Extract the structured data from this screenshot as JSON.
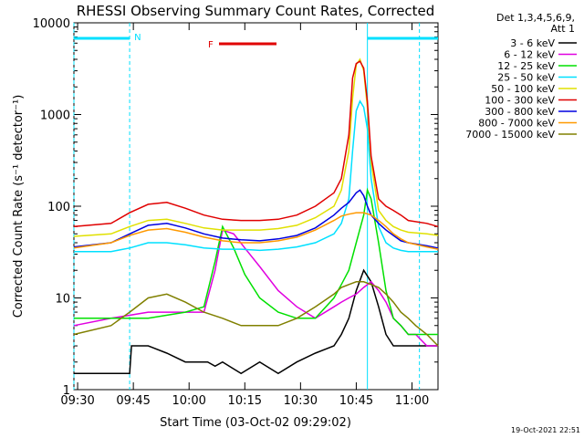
{
  "chart_data": {
    "type": "line",
    "title": "RHESSI Observing Summary Count Rates, Corrected",
    "xlabel": "Start Time (03-Oct-02 09:29:02)",
    "ylabel": "Corrected Count Rate (s⁻¹ detector⁻¹)",
    "yscale": "log",
    "ylim": [
      1,
      10000
    ],
    "xlim_minutes": [
      0,
      98
    ],
    "x_ticks": [
      "09:30",
      "09:45",
      "10:00",
      "10:15",
      "10:30",
      "10:45",
      "11:00"
    ],
    "y_ticks": [
      "1",
      "10",
      "100",
      "1000",
      "10000"
    ],
    "legend_header": [
      "Det 1,3,4,5,6,9,",
      "Att 1"
    ],
    "footer_date": "19-Oct-2021 22:51",
    "grid": false,
    "legend_position": "right",
    "annotations": {
      "night_label": "N",
      "flare_label": "F",
      "flare_color": "#e00000",
      "night_color": "#00e0ff"
    },
    "series": [
      {
        "name": "3 - 6 keV",
        "color": "#000000",
        "x": [
          0,
          15,
          15.5,
          16,
          20,
          25,
          30,
          33,
          36,
          38,
          40,
          45,
          50,
          55,
          60,
          65,
          70,
          72,
          74,
          76,
          78,
          80,
          82,
          84,
          86,
          88,
          90,
          92,
          95,
          98
        ],
        "y": [
          1.5,
          1.5,
          3,
          3,
          3,
          2.5,
          2,
          2,
          2,
          1.8,
          2,
          1.5,
          2,
          1.5,
          2,
          2.5,
          3,
          4,
          6,
          12,
          20,
          15,
          8,
          4,
          3,
          3,
          3,
          3,
          3,
          3
        ]
      },
      {
        "name": "6 - 12 keV",
        "color": "#e000e0",
        "x": [
          0,
          10,
          20,
          30,
          35,
          38,
          40,
          43,
          46,
          50,
          55,
          60,
          65,
          70,
          72,
          74,
          76,
          78,
          80,
          82,
          84,
          86,
          88,
          90,
          92,
          95,
          98
        ],
        "y": [
          5,
          6,
          7,
          7,
          7,
          20,
          55,
          50,
          35,
          22,
          12,
          8,
          6,
          8,
          9,
          10,
          11,
          13,
          15,
          12,
          9,
          6,
          5,
          4,
          4,
          3,
          3
        ]
      },
      {
        "name": "12 - 25 keV",
        "color": "#00e000",
        "x": [
          0,
          10,
          20,
          30,
          35,
          38,
          40,
          43,
          46,
          50,
          55,
          60,
          65,
          70,
          72,
          74,
          76,
          78,
          79,
          80,
          82,
          84,
          86,
          88,
          90,
          92,
          95,
          98
        ],
        "y": [
          6,
          6,
          6,
          7,
          8,
          25,
          60,
          35,
          18,
          10,
          7,
          6,
          6,
          10,
          14,
          20,
          40,
          80,
          150,
          120,
          40,
          12,
          6,
          5,
          4,
          4,
          4,
          4
        ]
      },
      {
        "name": "25 - 50 keV",
        "color": "#00e0ff",
        "x": [
          0,
          10,
          15,
          20,
          25,
          30,
          35,
          40,
          45,
          50,
          55,
          60,
          65,
          70,
          72,
          74,
          75,
          76,
          77,
          78,
          79,
          80,
          82,
          84,
          86,
          88,
          90,
          95,
          98
        ],
        "y": [
          32,
          32,
          35,
          40,
          40,
          38,
          35,
          34,
          34,
          33,
          34,
          36,
          40,
          50,
          65,
          120,
          400,
          1100,
          1400,
          1200,
          700,
          200,
          60,
          40,
          35,
          33,
          32,
          32,
          32
        ]
      },
      {
        "name": "50 - 100 keV",
        "color": "#e0e000",
        "x": [
          0,
          10,
          15,
          20,
          25,
          30,
          35,
          40,
          45,
          50,
          55,
          60,
          65,
          70,
          72,
          74,
          75,
          76,
          77,
          78,
          79,
          80,
          82,
          84,
          86,
          88,
          90,
          95,
          98
        ],
        "y": [
          47,
          50,
          60,
          70,
          72,
          65,
          58,
          55,
          55,
          55,
          57,
          62,
          75,
          100,
          150,
          400,
          1500,
          3500,
          4000,
          3000,
          1200,
          300,
          90,
          70,
          60,
          55,
          52,
          50,
          48
        ]
      },
      {
        "name": "100 - 300 keV",
        "color": "#e00000",
        "x": [
          0,
          10,
          15,
          20,
          25,
          30,
          35,
          40,
          45,
          50,
          55,
          60,
          65,
          70,
          72,
          74,
          75,
          76,
          77,
          78,
          79,
          80,
          82,
          84,
          86,
          88,
          90,
          95,
          98
        ],
        "y": [
          60,
          65,
          85,
          105,
          110,
          95,
          80,
          72,
          70,
          70,
          72,
          80,
          100,
          140,
          200,
          600,
          2500,
          3600,
          3800,
          3200,
          1400,
          350,
          120,
          100,
          90,
          80,
          70,
          65,
          60
        ]
      },
      {
        "name": "300 - 800 keV",
        "color": "#0000e0",
        "x": [
          0,
          10,
          15,
          20,
          25,
          30,
          35,
          40,
          45,
          50,
          55,
          60,
          65,
          70,
          72,
          74,
          76,
          77,
          78,
          79,
          80,
          82,
          84,
          86,
          88,
          90,
          95,
          98
        ],
        "y": [
          36,
          40,
          50,
          62,
          65,
          58,
          50,
          45,
          43,
          42,
          44,
          48,
          58,
          80,
          95,
          110,
          140,
          150,
          130,
          100,
          80,
          65,
          55,
          48,
          42,
          40,
          37,
          35
        ]
      },
      {
        "name": "800 - 7000 keV",
        "color": "#ff9900",
        "x": [
          0,
          10,
          15,
          20,
          25,
          30,
          35,
          40,
          45,
          50,
          55,
          60,
          65,
          70,
          72,
          74,
          76,
          78,
          80,
          82,
          84,
          86,
          88,
          90,
          95,
          98
        ],
        "y": [
          35,
          40,
          48,
          55,
          57,
          52,
          46,
          42,
          40,
          40,
          42,
          46,
          55,
          70,
          78,
          82,
          85,
          85,
          80,
          70,
          60,
          50,
          44,
          40,
          36,
          34
        ]
      },
      {
        "name": "7000 - 15000 keV",
        "color": "#808000",
        "x": [
          0,
          10,
          15,
          20,
          25,
          30,
          35,
          40,
          45,
          50,
          55,
          60,
          65,
          70,
          72,
          74,
          76,
          78,
          80,
          82,
          84,
          86,
          88,
          90,
          92,
          95,
          98
        ],
        "y": [
          4,
          5,
          7,
          10,
          11,
          9,
          7,
          6,
          5,
          5,
          5,
          6,
          8,
          11,
          13,
          14,
          15,
          15,
          14,
          13,
          11,
          9,
          7,
          6,
          5,
          4,
          3
        ]
      }
    ]
  }
}
